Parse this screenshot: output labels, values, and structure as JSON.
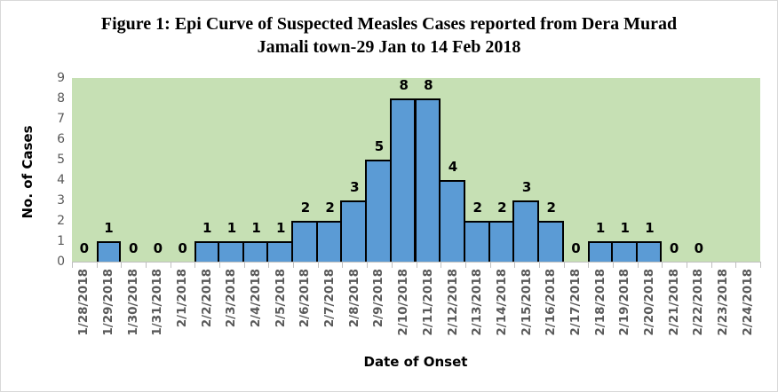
{
  "title": {
    "line1": "Figure 1: Epi Curve of Suspected Measles Cases reported from Dera Murad",
    "line2": "Jamali town-29 Jan to 14 Feb 2018"
  },
  "chart_data": {
    "type": "bar",
    "title": "Figure 1: Epi Curve of Suspected Measles Cases reported from Dera Murad Jamali town-29 Jan to 14 Feb 2018",
    "categories": [
      "1/28/2018",
      "1/29/2018",
      "1/30/2018",
      "1/31/2018",
      "2/1/2018",
      "2/2/2018",
      "2/3/2018",
      "2/4/2018",
      "2/5/2018",
      "2/6/2018",
      "2/7/2018",
      "2/8/2018",
      "2/9/2018",
      "2/10/2018",
      "2/11/2018",
      "2/12/2018",
      "2/13/2018",
      "2/14/2018",
      "2/15/2018",
      "2/16/2018",
      "2/17/2018",
      "2/18/2018",
      "2/19/2018",
      "2/20/2018",
      "2/21/2018",
      "2/22/2018",
      "2/23/2018",
      "2/24/2018"
    ],
    "values": [
      0,
      1,
      0,
      0,
      0,
      1,
      1,
      1,
      1,
      2,
      2,
      3,
      5,
      8,
      8,
      4,
      2,
      2,
      3,
      2,
      0,
      1,
      1,
      1,
      0,
      0,
      null,
      null
    ],
    "xlabel": "Date of Onset",
    "ylabel": "No. of Cases",
    "ylim": [
      0,
      9
    ],
    "yticks": [
      0,
      1,
      2,
      3,
      4,
      5,
      6,
      7,
      8,
      9
    ],
    "data_labels": true,
    "legend": "none",
    "gap_width_percent": 0,
    "colors": {
      "bar_fill": "#5B9BD5",
      "bar_border": "#000000",
      "plot_background": "#C6E0B4",
      "tick_text": "#595959",
      "axis_line": "#BFBFBF",
      "title_text": "#000000"
    }
  }
}
